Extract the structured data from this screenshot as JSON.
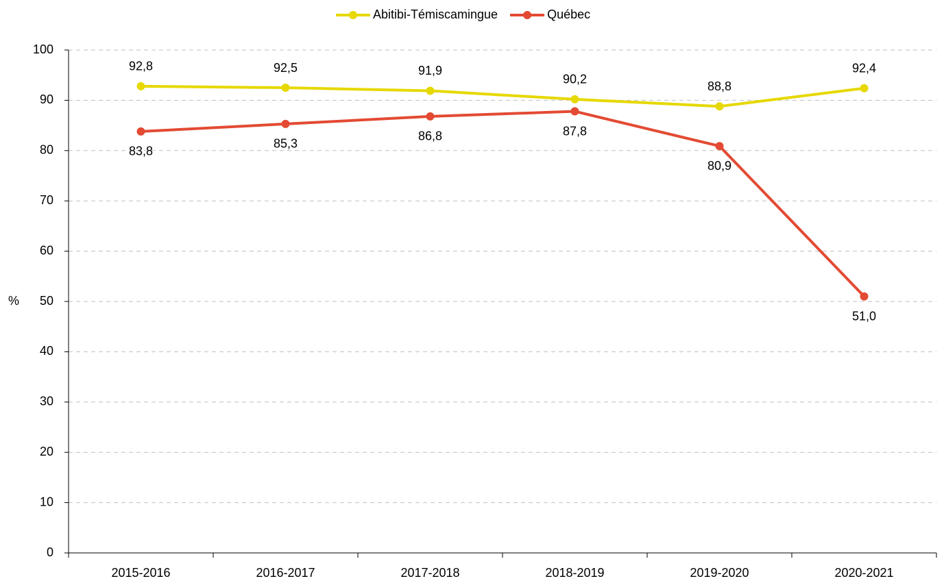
{
  "chart_data": {
    "type": "line",
    "y_axis_label": "%",
    "categories": [
      "2015-2016",
      "2016-2017",
      "2017-2018",
      "2018-2019",
      "2019-2020",
      "2020-2021"
    ],
    "series": [
      {
        "name": "Abitibi-Témiscamingue",
        "color": "#e6d800",
        "values": [
          92.8,
          92.5,
          91.9,
          90.2,
          88.8,
          92.4
        ],
        "value_labels": [
          "92,8",
          "92,5",
          "91,9",
          "90,2",
          "88,8",
          "92,4"
        ]
      },
      {
        "name": "Québec",
        "color": "#e34a33",
        "values": [
          83.8,
          85.3,
          86.8,
          87.8,
          80.9,
          51.0
        ],
        "value_labels": [
          "83,8",
          "85,3",
          "86,8",
          "87,8",
          "80,9",
          "51,0"
        ]
      }
    ],
    "ylim": [
      0,
      100
    ],
    "yticks": [
      0,
      10,
      20,
      30,
      40,
      50,
      60,
      70,
      80,
      90,
      100
    ],
    "grid": true,
    "legend": "top"
  }
}
